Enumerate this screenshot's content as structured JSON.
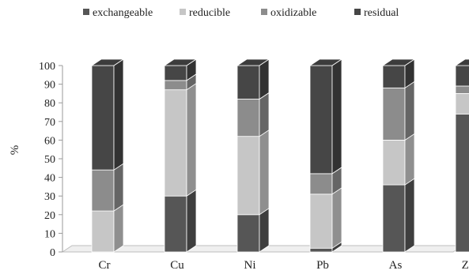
{
  "chart_data": {
    "type": "bar",
    "stacked": true,
    "three_d": true,
    "categories": [
      "Cr",
      "Cu",
      "Ni",
      "Pb",
      "As",
      "Zn"
    ],
    "series": [
      {
        "name": "exchangeable",
        "color": "#565656",
        "values": [
          0,
          30,
          20,
          2,
          36,
          74
        ]
      },
      {
        "name": "reducible",
        "color": "#c6c6c6",
        "values": [
          22,
          57,
          42,
          29,
          24,
          11
        ]
      },
      {
        "name": "oxidizable",
        "color": "#8c8c8c",
        "values": [
          22,
          5,
          20,
          11,
          28,
          4
        ]
      },
      {
        "name": "residual",
        "color": "#464646",
        "values": [
          56,
          8,
          18,
          58,
          12,
          11
        ]
      }
    ],
    "xlabel": "",
    "ylabel": "%",
    "ylim": [
      0,
      100
    ],
    "yticks": [
      0,
      10,
      20,
      30,
      40,
      50,
      60,
      70,
      80,
      90,
      100
    ],
    "grid": false,
    "legend": "top"
  }
}
